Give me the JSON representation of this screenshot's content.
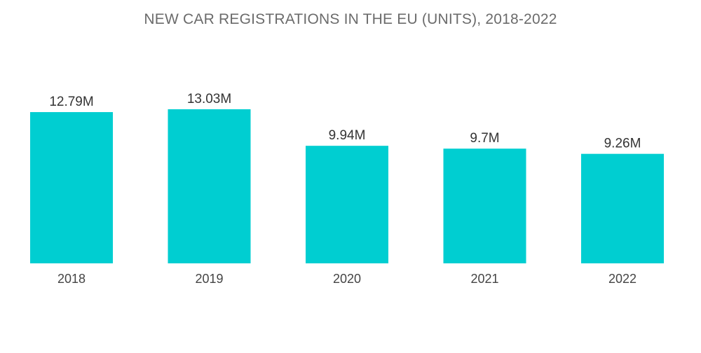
{
  "chart_data": {
    "type": "bar",
    "title": "NEW CAR REGISTRATIONS IN THE EU (UNITS), 2018-2022",
    "xlabel": "",
    "ylabel": "",
    "categories": [
      "2018",
      "2019",
      "2020",
      "2021",
      "2022"
    ],
    "values": [
      12.79,
      13.03,
      9.94,
      9.7,
      9.26
    ],
    "value_labels": [
      "12.79M",
      "13.03M",
      "9.94M",
      "9.7M",
      "9.26M"
    ],
    "ylim": [
      0,
      13.03
    ],
    "grid": false,
    "legend": "none",
    "bar_color": "#00ced1"
  }
}
